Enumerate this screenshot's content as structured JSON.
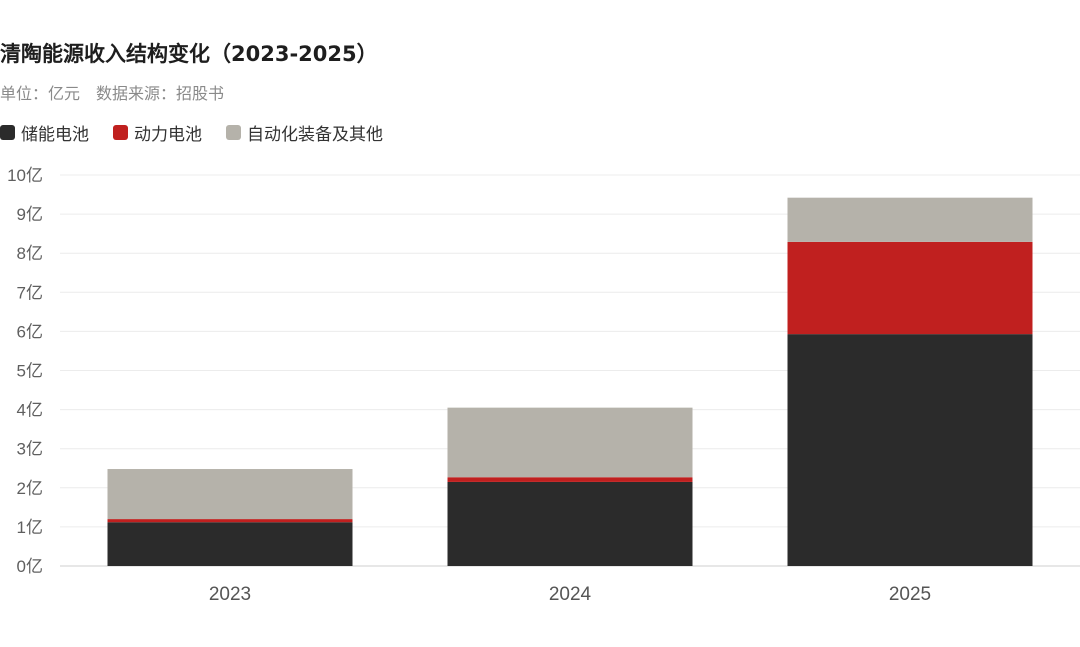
{
  "header": {
    "title": "清陶能源收入结构变化（2023-2025）",
    "subtitle": "单位：亿元　数据来源：招股书"
  },
  "chart_data": {
    "type": "bar",
    "stacked": true,
    "categories": [
      "2023",
      "2024",
      "2025"
    ],
    "series": [
      {
        "name": "储能电池",
        "color": "#2b2b2b",
        "values": [
          1.12,
          2.15,
          5.93
        ]
      },
      {
        "name": "动力电池",
        "color": "#c0201f",
        "values": [
          0.08,
          0.12,
          2.36
        ]
      },
      {
        "name": "自动化装备及其他",
        "color": "#b5b2aa",
        "values": [
          1.28,
          1.78,
          1.13
        ]
      }
    ],
    "ylim": [
      0,
      10
    ],
    "yticks": [
      "0亿",
      "1亿",
      "2亿",
      "3亿",
      "4亿",
      "5亿",
      "6亿",
      "7亿",
      "8亿",
      "9亿",
      "10亿"
    ],
    "grid": true,
    "legend": "top-left"
  }
}
